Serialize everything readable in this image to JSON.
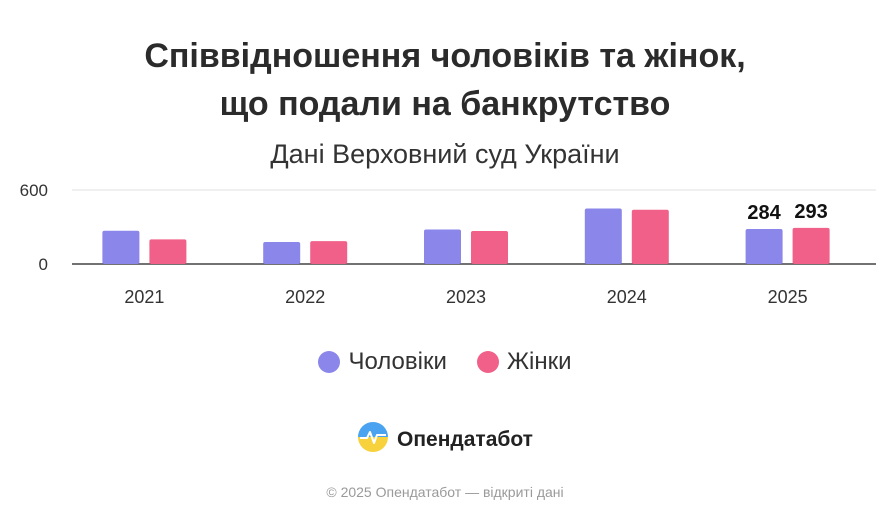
{
  "chart_data": {
    "type": "bar",
    "title_lines": [
      "Співвідношення чоловіків та жінок,",
      "що подали на банкрутство"
    ],
    "subtitle": "Дані Верховний суд України",
    "categories": [
      "2021",
      "2022",
      "2023",
      "2024",
      "2025"
    ],
    "series": [
      {
        "name": "Чоловіки",
        "color": "#8a86ea",
        "values": [
          270,
          178,
          280,
          450,
          284
        ]
      },
      {
        "name": "Жінки",
        "color": "#f06088",
        "values": [
          200,
          185,
          268,
          440,
          293
        ]
      }
    ],
    "data_labels": [
      {
        "category": "2025",
        "series": 0,
        "text": "284"
      },
      {
        "category": "2025",
        "series": 1,
        "text": "293"
      }
    ],
    "y_ticks": [
      0,
      600
    ],
    "ylim": [
      0,
      600
    ],
    "grid": true,
    "legend_position": "bottom"
  },
  "branding": {
    "logo_icon": "opendatabot-logo-icon",
    "name": "Опендатабот"
  },
  "footer": "© 2025 Опендатабот — відкриті дані"
}
